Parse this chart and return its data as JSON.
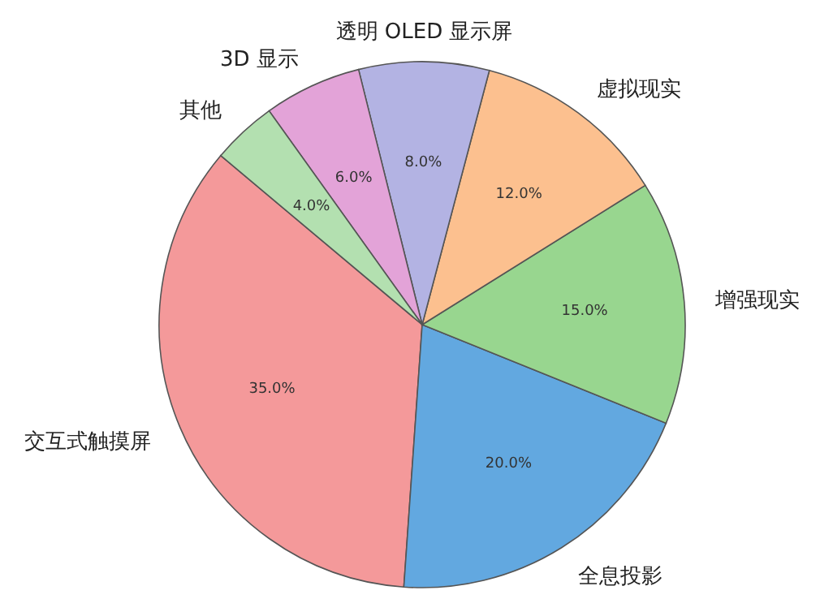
{
  "chart_data": {
    "type": "pie",
    "categories": [
      "交互式触摸屏",
      "全息投影",
      "增强现实",
      "虚拟现实",
      "透明 OLED 显示屏",
      "3D 显示",
      "其他"
    ],
    "values": [
      35,
      20,
      15,
      12,
      8,
      6,
      4
    ],
    "colors": [
      "#f4999a",
      "#62a8e0",
      "#98d68f",
      "#fcc08f",
      "#b3b3e3",
      "#e3a3d8",
      "#b3e0b0"
    ],
    "value_labels": [
      "35.0%",
      "20.0%",
      "15.0%",
      "12.0%",
      "8.0%",
      "6.0%",
      "4.0%"
    ]
  }
}
